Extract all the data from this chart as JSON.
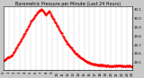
{
  "title": "Barometric Pressure per Minute (Last 24 Hours)",
  "bg_color": "#c8c8c8",
  "plot_bg": "#ffffff",
  "grid_color": "#aaaaaa",
  "line_color": "#ff0000",
  "ylim": [
    29.42,
    30.13
  ],
  "yticks": [
    29.5,
    29.6,
    29.7,
    29.8,
    29.9,
    30.0,
    30.1
  ],
  "ytick_labels": [
    "29.5",
    "29.6",
    "29.7",
    "29.8",
    "29.9",
    "30.0",
    "30.1"
  ],
  "num_points": 1440,
  "xtick_positions": [
    0,
    60,
    120,
    180,
    240,
    300,
    360,
    420,
    480,
    540,
    600,
    660,
    720,
    780,
    840,
    900,
    960,
    1020,
    1080,
    1140,
    1200,
    1260,
    1320,
    1380,
    1439
  ],
  "xtick_labels": [
    "0",
    "1",
    "2",
    "3",
    "4",
    "5",
    "6",
    "7",
    "8",
    "9",
    "10",
    "11",
    "12",
    "13",
    "14",
    "15",
    "16",
    "17",
    "18",
    "19",
    "20",
    "21",
    "22",
    "23",
    "24"
  ],
  "title_fontsize": 3.5,
  "tick_fontsize": 2.8
}
